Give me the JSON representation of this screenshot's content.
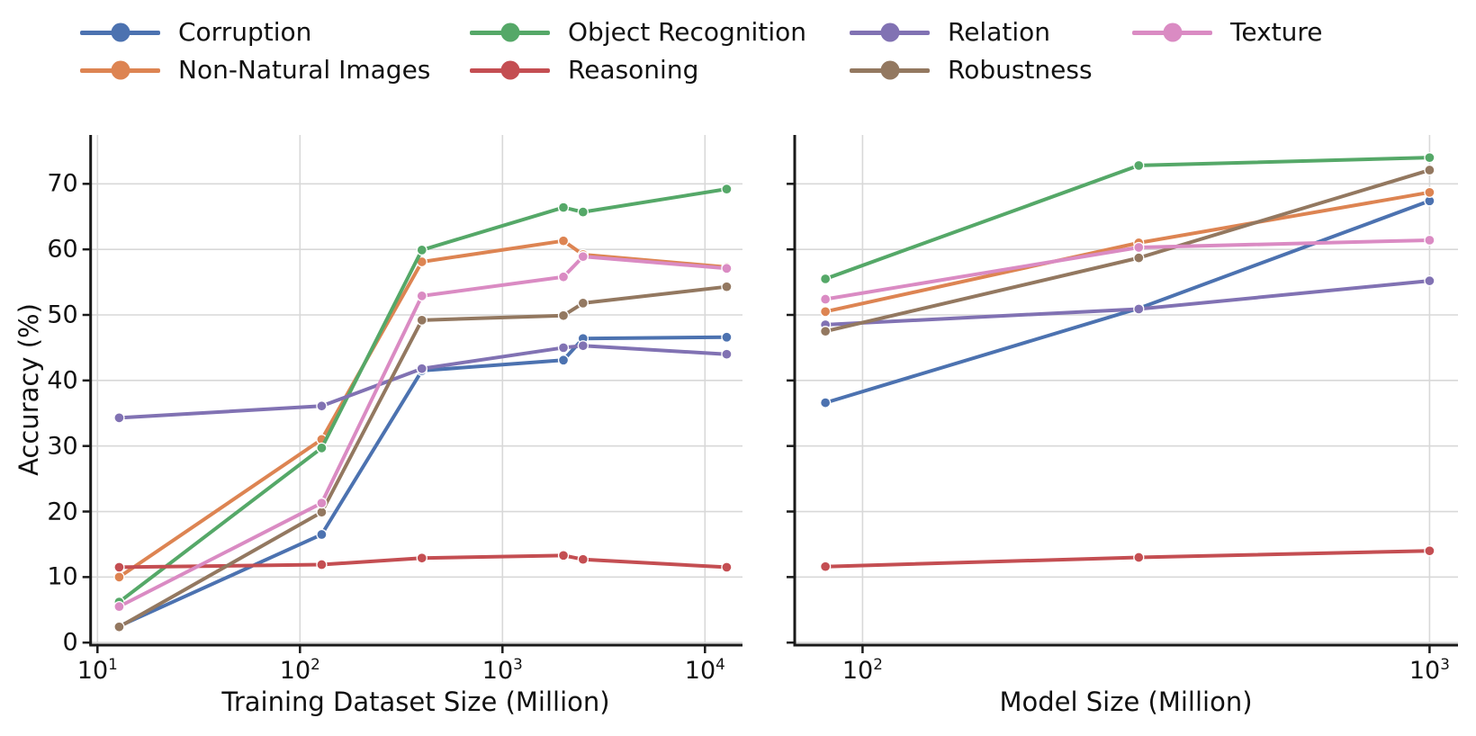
{
  "figure": {
    "ylabel": "Accuracy (%)"
  },
  "legend": {
    "entries": [
      {
        "label": "Corruption",
        "color": "#4C72B0"
      },
      {
        "label": "Non-Natural Images",
        "color": "#DD8452"
      },
      {
        "label": "Object Recognition",
        "color": "#55A868"
      },
      {
        "label": "Reasoning",
        "color": "#C44E52"
      },
      {
        "label": "Relation",
        "color": "#8172B3"
      },
      {
        "label": "Robustness",
        "color": "#937860"
      },
      {
        "label": "Texture",
        "color": "#DA8BC3"
      }
    ]
  },
  "chart_data": [
    {
      "type": "line",
      "name": "accuracy-vs-training-dataset-size",
      "xlabel": "Training Dataset Size (Million)",
      "ylabel": "Accuracy (%)",
      "xscale": "log",
      "grid": true,
      "xlim": [
        9.3,
        15500
      ],
      "ylim": [
        0,
        77
      ],
      "x": [
        12.8,
        128,
        400,
        2000,
        2500,
        12800
      ],
      "xticks": [
        {
          "value": 10,
          "base": "10",
          "exp": "1"
        },
        {
          "value": 100,
          "base": "10",
          "exp": "2"
        },
        {
          "value": 1000,
          "base": "10",
          "exp": "3"
        },
        {
          "value": 10000,
          "base": "10",
          "exp": "4"
        }
      ],
      "yticks": [
        0,
        10,
        20,
        30,
        40,
        50,
        60,
        70
      ],
      "show_ytick_labels": true,
      "series": [
        {
          "name": "Corruption",
          "color": "#4C72B0",
          "values": [
            2.5,
            16.5,
            41.5,
            43.1,
            46.4,
            46.6
          ]
        },
        {
          "name": "Non-Natural Images",
          "color": "#DD8452",
          "values": [
            10.0,
            31.0,
            58.1,
            61.3,
            59.2,
            57.3
          ]
        },
        {
          "name": "Object Recognition",
          "color": "#55A868",
          "values": [
            6.2,
            29.7,
            59.9,
            66.4,
            65.7,
            69.2
          ]
        },
        {
          "name": "Reasoning",
          "color": "#C44E52",
          "values": [
            11.5,
            11.9,
            12.9,
            13.3,
            12.7,
            11.5
          ]
        },
        {
          "name": "Relation",
          "color": "#8172B3",
          "values": [
            34.3,
            36.1,
            41.8,
            45.0,
            45.3,
            44.0
          ]
        },
        {
          "name": "Robustness",
          "color": "#937860",
          "values": [
            2.4,
            19.9,
            49.2,
            49.9,
            51.8,
            54.3
          ]
        },
        {
          "name": "Texture",
          "color": "#DA8BC3",
          "values": [
            5.5,
            21.3,
            52.9,
            55.8,
            58.9,
            57.1
          ]
        }
      ]
    },
    {
      "type": "line",
      "name": "accuracy-vs-model-size",
      "xlabel": "Model Size (Million)",
      "ylabel": "Accuracy (%)",
      "xscale": "log",
      "grid": true,
      "xlim": [
        76,
        1120
      ],
      "ylim": [
        0,
        77
      ],
      "x": [
        86,
        307,
        1000
      ],
      "xticks": [
        {
          "value": 100,
          "base": "10",
          "exp": "2"
        },
        {
          "value": 1000,
          "base": "10",
          "exp": "3"
        }
      ],
      "yticks": [
        0,
        10,
        20,
        30,
        40,
        50,
        60,
        70
      ],
      "show_ytick_labels": false,
      "series": [
        {
          "name": "Corruption",
          "color": "#4C72B0",
          "values": [
            36.6,
            51.0,
            67.4
          ]
        },
        {
          "name": "Non-Natural Images",
          "color": "#DD8452",
          "values": [
            50.5,
            61.0,
            68.7
          ]
        },
        {
          "name": "Object Recognition",
          "color": "#55A868",
          "values": [
            55.5,
            72.8,
            74.0
          ]
        },
        {
          "name": "Reasoning",
          "color": "#C44E52",
          "values": [
            11.6,
            13.0,
            14.0
          ]
        },
        {
          "name": "Relation",
          "color": "#8172B3",
          "values": [
            48.5,
            50.9,
            55.2
          ]
        },
        {
          "name": "Robustness",
          "color": "#937860",
          "values": [
            47.5,
            58.7,
            72.1
          ]
        },
        {
          "name": "Texture",
          "color": "#DA8BC3",
          "values": [
            52.4,
            60.3,
            61.4
          ]
        }
      ]
    }
  ]
}
